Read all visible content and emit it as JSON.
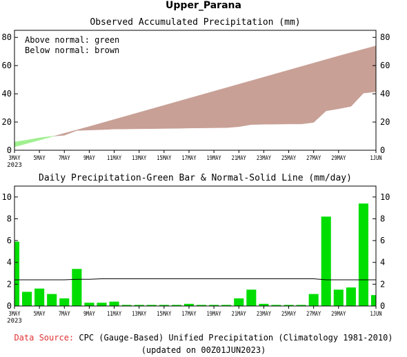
{
  "page_title": "Upper_Parana",
  "footer": {
    "source_label": "Data Source:",
    "source_text": " CPC (Gauge-Based) Unified Precipitation (Climatology 1981-2010)",
    "updated": "(updated on 00Z01JUN2023)"
  },
  "colors": {
    "above_normal": "#a0f090",
    "below_normal": "#c8a096",
    "daily_bar": "#00dd00",
    "normal_line": "#000000",
    "source_label": "#e03030"
  },
  "chart_data": [
    {
      "type": "area",
      "title": "Observed Accumulated Precipitation (mm)",
      "annotations": [
        "Above normal: green",
        "Below normal: brown"
      ],
      "x_tick_labels": [
        "3MAY",
        "5MAY",
        "7MAY",
        "9MAY",
        "11MAY",
        "13MAY",
        "15MAY",
        "17MAY",
        "19MAY",
        "21MAY",
        "23MAY",
        "25MAY",
        "27MAY",
        "29MAY",
        "1JUN"
      ],
      "x_year_label": "2023",
      "ylim": [
        0,
        85
      ],
      "y_ticks": [
        0,
        20,
        40,
        60,
        80
      ],
      "grid": false,
      "series": [
        {
          "name": "Observed",
          "x": [
            "3MAY",
            "4MAY",
            "5MAY",
            "6MAY",
            "7MAY",
            "8MAY",
            "9MAY",
            "10MAY",
            "11MAY",
            "12MAY",
            "13MAY",
            "14MAY",
            "15MAY",
            "16MAY",
            "17MAY",
            "18MAY",
            "19MAY",
            "20MAY",
            "21MAY",
            "22MAY",
            "23MAY",
            "24MAY",
            "25MAY",
            "26MAY",
            "27MAY",
            "28MAY",
            "29MAY",
            "30MAY",
            "31MAY",
            "1JUN"
          ],
          "values": [
            5.9,
            7.2,
            8.8,
            9.9,
            10.6,
            14.0,
            14.3,
            14.6,
            15.0,
            15.1,
            15.2,
            15.3,
            15.4,
            15.5,
            15.7,
            15.8,
            15.9,
            16.0,
            16.7,
            18.2,
            18.4,
            18.5,
            18.6,
            18.6,
            19.7,
            27.9,
            29.4,
            31.1,
            40.5,
            41.5
          ]
        },
        {
          "name": "Normal",
          "x": [
            "3MAY",
            "4MAY",
            "5MAY",
            "6MAY",
            "7MAY",
            "8MAY",
            "9MAY",
            "10MAY",
            "11MAY",
            "12MAY",
            "13MAY",
            "14MAY",
            "15MAY",
            "16MAY",
            "17MAY",
            "18MAY",
            "19MAY",
            "20MAY",
            "21MAY",
            "22MAY",
            "23MAY",
            "24MAY",
            "25MAY",
            "26MAY",
            "27MAY",
            "28MAY",
            "29MAY",
            "30MAY",
            "31MAY",
            "1JUN"
          ],
          "values": [
            2.4,
            4.8,
            7.2,
            9.6,
            12.0,
            14.4,
            16.8,
            19.3,
            21.8,
            24.3,
            26.8,
            29.3,
            31.8,
            34.3,
            36.8,
            39.3,
            41.8,
            44.3,
            46.8,
            49.3,
            51.8,
            54.3,
            56.8,
            59.3,
            61.8,
            64.3,
            66.8,
            69.2,
            71.6,
            74.0
          ]
        }
      ]
    },
    {
      "type": "bar",
      "title": "Daily Precipitation-Green Bar & Normal-Solid Line (mm/day)",
      "x_tick_labels": [
        "3MAY",
        "5MAY",
        "7MAY",
        "9MAY",
        "11MAY",
        "13MAY",
        "15MAY",
        "17MAY",
        "19MAY",
        "21MAY",
        "23MAY",
        "25MAY",
        "27MAY",
        "29MAY",
        "1JUN"
      ],
      "x_year_label": "2023",
      "ylim": [
        0,
        11
      ],
      "y_ticks": [
        0,
        2,
        4,
        6,
        8,
        10
      ],
      "grid": false,
      "categories": [
        "3MAY",
        "4MAY",
        "5MAY",
        "6MAY",
        "7MAY",
        "8MAY",
        "9MAY",
        "10MAY",
        "11MAY",
        "12MAY",
        "13MAY",
        "14MAY",
        "15MAY",
        "16MAY",
        "17MAY",
        "18MAY",
        "19MAY",
        "20MAY",
        "21MAY",
        "22MAY",
        "23MAY",
        "24MAY",
        "25MAY",
        "26MAY",
        "27MAY",
        "28MAY",
        "29MAY",
        "30MAY",
        "31MAY",
        "1JUN"
      ],
      "series": [
        {
          "name": "Daily Precipitation",
          "values": [
            5.9,
            1.3,
            1.6,
            1.1,
            0.7,
            3.4,
            0.3,
            0.3,
            0.4,
            0.1,
            0.1,
            0.1,
            0.1,
            0.1,
            0.2,
            0.1,
            0.1,
            0.1,
            0.7,
            1.5,
            0.2,
            0.1,
            0.1,
            0.1,
            1.1,
            8.2,
            1.5,
            1.7,
            9.4,
            1.0
          ]
        },
        {
          "name": "Normal",
          "values": [
            2.4,
            2.4,
            2.4,
            2.4,
            2.4,
            2.45,
            2.45,
            2.5,
            2.5,
            2.5,
            2.5,
            2.5,
            2.5,
            2.5,
            2.5,
            2.5,
            2.5,
            2.5,
            2.5,
            2.5,
            2.5,
            2.5,
            2.5,
            2.5,
            2.5,
            2.4,
            2.4,
            2.4,
            2.4,
            2.4
          ]
        }
      ]
    }
  ]
}
